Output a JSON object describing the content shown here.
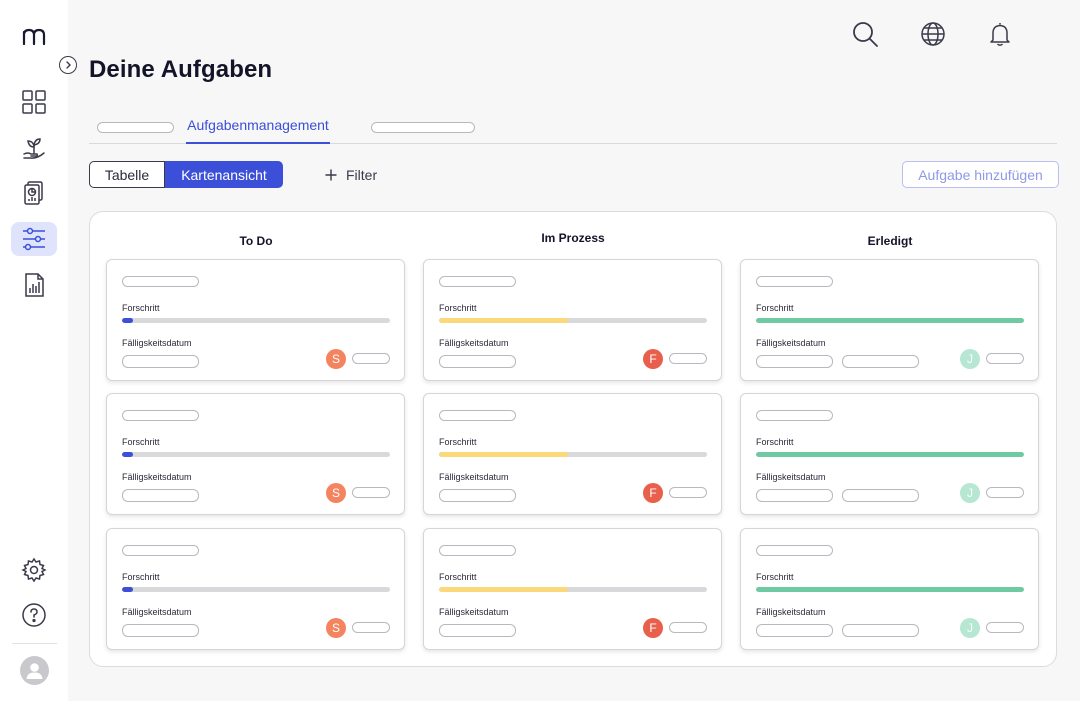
{
  "header": {
    "title": "Deine Aufgaben"
  },
  "tabs": {
    "active_label": "Aufgabenmanagement"
  },
  "view_toggle": {
    "table_label": "Tabelle",
    "card_label": "Kartenansicht"
  },
  "toolbar": {
    "filter_label": "Filter",
    "add_label": "Aufgabe hinzufügen"
  },
  "labels": {
    "progress": "Forschritt",
    "due_date": "Fälligskeitsdatum"
  },
  "icons": {
    "sidebar": [
      "grid-icon",
      "plant-icon",
      "report-icon",
      "sliders-icon",
      "chart-document-icon",
      "gear-icon",
      "help-icon",
      "user-avatar-icon"
    ],
    "top": [
      "search-icon",
      "globe-icon",
      "bell-icon"
    ]
  },
  "columns": [
    {
      "title": "To Do",
      "progress": 0.04,
      "color": "#3b4fd8",
      "assignee": "S",
      "assignee_color": "#f4845f",
      "cards": 3
    },
    {
      "title": "Im Prozess",
      "progress": 0.48,
      "color": "#fbd87a",
      "assignee": "F",
      "assignee_color": "#e8604c",
      "cards": 3
    },
    {
      "title": "Erledigt",
      "progress": 1.0,
      "color": "#6fcaa4",
      "assignee": "J",
      "assignee_color": "#b6e7d3",
      "cards": 3
    }
  ]
}
